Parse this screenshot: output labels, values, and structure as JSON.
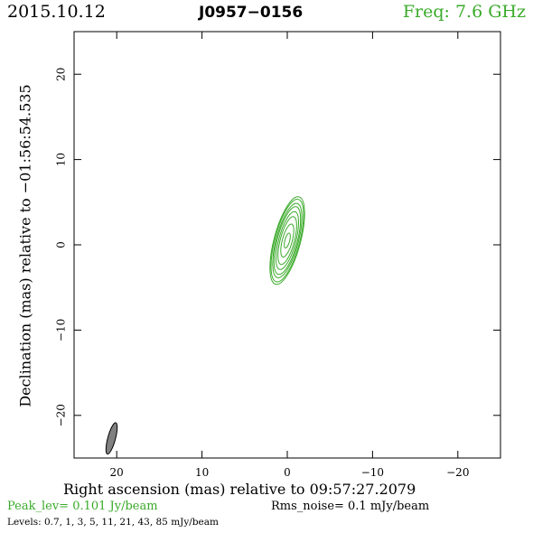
{
  "header": {
    "date": "2015.10.12",
    "source": "J0957−0156",
    "freq": "Freq: 7.6 GHz"
  },
  "footer": {
    "peak": "Peak_lev=  0.101 Jy/beam",
    "rms": "Rms_noise=   0.1 mJy/beam",
    "levels": "Levels: 0.7,   1,   3,   5,   11,   21,   43,   85 mJy/beam"
  },
  "colors": {
    "contour": "#3aaa2a",
    "beam_fill": "#808080",
    "axes": "#000000"
  },
  "chart_data": {
    "type": "contour",
    "xlabel": "Right ascension (mas) relative to 09:57:27.2079",
    "ylabel": "Declination (mas) relative to −01:56:54.535",
    "xlim": [
      25,
      -25
    ],
    "ylim": [
      -25,
      25
    ],
    "x_ticks": [
      20,
      10,
      0,
      -10,
      -20
    ],
    "x_tick_labels": [
      "20",
      "10",
      "0",
      "−10",
      "−20"
    ],
    "y_ticks": [
      20,
      10,
      0,
      -10,
      -20
    ],
    "y_tick_labels": [
      "20",
      "10",
      "0",
      "−10",
      "−20"
    ],
    "levels_mJy": [
      0.7,
      1,
      3,
      5,
      11,
      21,
      43,
      85
    ],
    "peak_Jy_per_beam": 0.101,
    "rms_mJy_per_beam": 0.1,
    "source_component": {
      "center": [
        0.0,
        0.5
      ],
      "position_angle_deg": 15,
      "contours": [
        {
          "level": 0.7,
          "semi_major": 5.3,
          "semi_minor": 1.55
        },
        {
          "level": 1,
          "semi_major": 5.0,
          "semi_minor": 1.45
        },
        {
          "level": 3,
          "semi_major": 4.5,
          "semi_minor": 1.3
        },
        {
          "level": 5,
          "semi_major": 4.1,
          "semi_minor": 1.18
        },
        {
          "level": 11,
          "semi_major": 3.5,
          "semi_minor": 1.0
        },
        {
          "level": 21,
          "semi_major": 2.9,
          "semi_minor": 0.83
        },
        {
          "level": 43,
          "semi_major": 2.0,
          "semi_minor": 0.58
        },
        {
          "level": 85,
          "semi_major": 0.9,
          "semi_minor": 0.28
        }
      ]
    },
    "beam": {
      "center": [
        20.6,
        -22.7
      ],
      "semi_major": 1.9,
      "semi_minor": 0.45,
      "position_angle_deg": 15
    }
  }
}
